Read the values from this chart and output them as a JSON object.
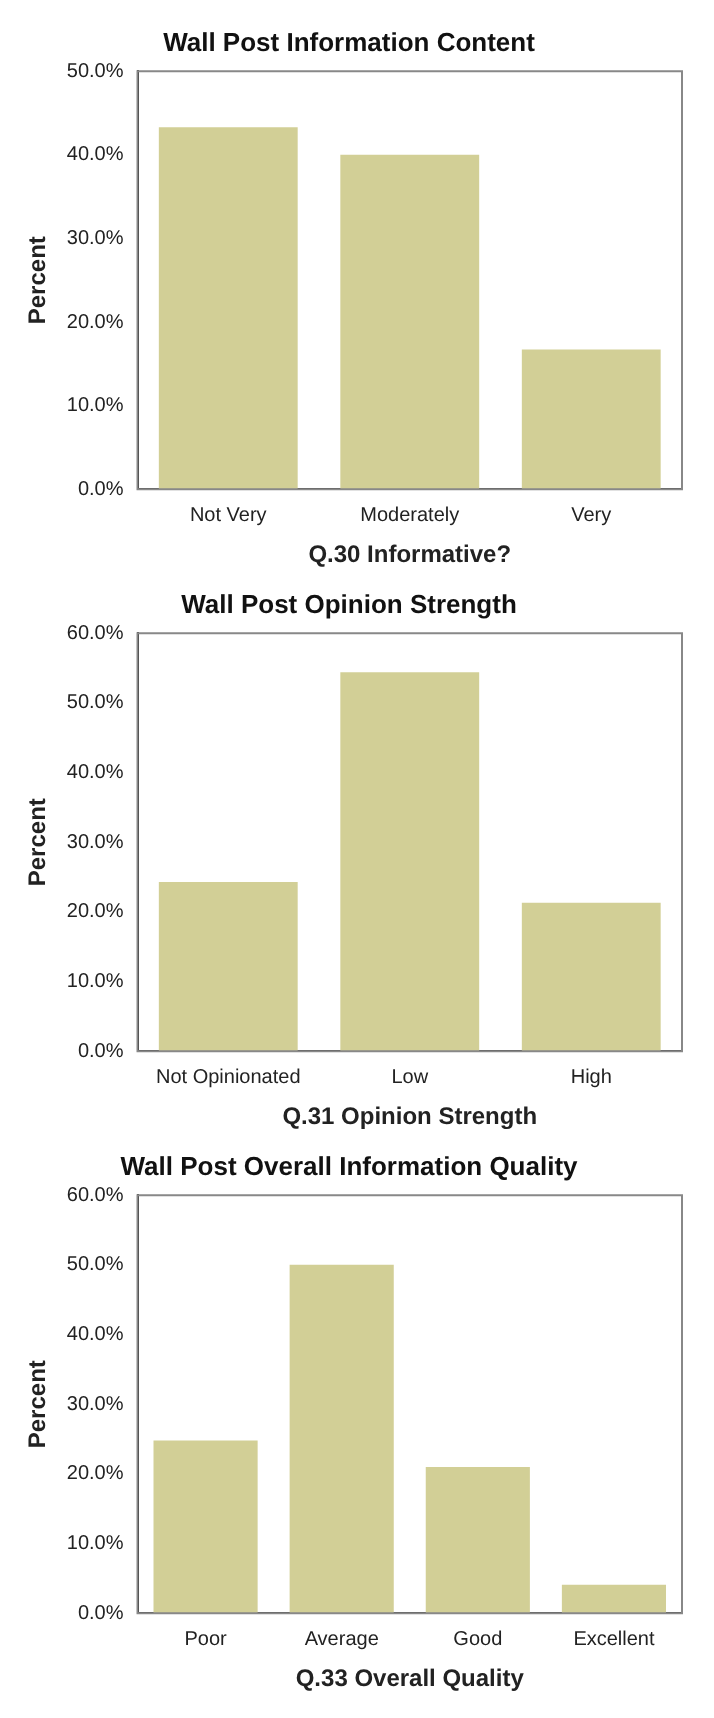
{
  "chart_data": [
    {
      "type": "bar",
      "title": "Wall Post Information Content",
      "xlabel": "Q.30 Informative?",
      "ylabel": "Percent",
      "categories": [
        "Not Very",
        "Moderately",
        "Very"
      ],
      "values": [
        43.3,
        40.0,
        16.7
      ],
      "color": "#d2cf96",
      "ylim": [
        0,
        50
      ],
      "yticks": [
        {
          "value": 0,
          "label": "0.0%"
        },
        {
          "value": 10,
          "label": "10.0%"
        },
        {
          "value": 20,
          "label": "20.0%"
        },
        {
          "value": 30,
          "label": "30.0%"
        },
        {
          "value": 40,
          "label": "40.0%"
        },
        {
          "value": 50,
          "label": "50.0%"
        }
      ],
      "grid": false,
      "legend": false
    },
    {
      "type": "bar",
      "title": "Wall Post Opinion Strength",
      "xlabel": "Q.31 Opinion Strength",
      "ylabel": "Percent",
      "categories": [
        "Not Opinionated",
        "Low",
        "High"
      ],
      "values": [
        24.3,
        54.4,
        21.3
      ],
      "color": "#d2cf96",
      "ylim": [
        0,
        60
      ],
      "yticks": [
        {
          "value": 0,
          "label": "0.0%"
        },
        {
          "value": 10,
          "label": "10.0%"
        },
        {
          "value": 20,
          "label": "20.0%"
        },
        {
          "value": 30,
          "label": "30.0%"
        },
        {
          "value": 40,
          "label": "40.0%"
        },
        {
          "value": 50,
          "label": "50.0%"
        },
        {
          "value": 60,
          "label": "60.0%"
        }
      ],
      "grid": false,
      "legend": false
    },
    {
      "type": "bar",
      "title": "Wall Post Overall Information Quality",
      "xlabel": "Q.33 Overall Quality",
      "ylabel": "Percent",
      "categories": [
        "Poor",
        "Average",
        "Good",
        "Excellent"
      ],
      "values": [
        24.8,
        50.0,
        21.0,
        4.1
      ],
      "color": "#d2cf96",
      "ylim": [
        0,
        60
      ],
      "yticks": [
        {
          "value": 0,
          "label": "0.0%"
        },
        {
          "value": 10,
          "label": "10.0%"
        },
        {
          "value": 20,
          "label": "20.0%"
        },
        {
          "value": 30,
          "label": "30.0%"
        },
        {
          "value": 40,
          "label": "40.0%"
        },
        {
          "value": 50,
          "label": "50.0%"
        },
        {
          "value": 60,
          "label": "60.0%"
        }
      ],
      "grid": false,
      "legend": false
    }
  ]
}
